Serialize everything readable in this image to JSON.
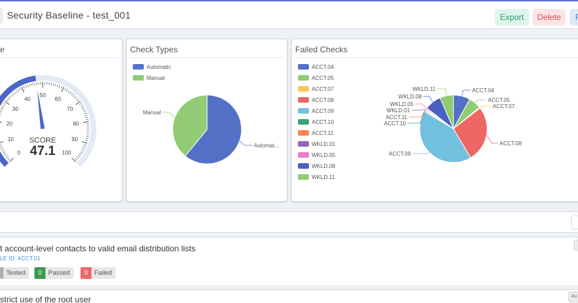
{
  "header": {
    "title": "Security Baseline - test_001",
    "export_label": "Export",
    "delete_label": "Delete",
    "more_label": "F"
  },
  "score_card": {
    "title": "e",
    "score_label": "SCORE",
    "score_value": "47.1",
    "score": 47.1,
    "gauge_min": 0,
    "gauge_max": 100,
    "ticks": [
      "0",
      "10",
      "20",
      "30",
      "40",
      "50",
      "60",
      "70",
      "80",
      "90",
      "100"
    ],
    "accent_color": "#4a66c9"
  },
  "check_types": {
    "title": "Check Types"
  },
  "failed_checks": {
    "title": "Failed Checks"
  },
  "chart_data": [
    {
      "type": "pie",
      "title": "Check Types",
      "categories": [
        "Automatic",
        "Manual"
      ],
      "values": [
        61,
        39
      ],
      "colors": [
        "#5470c6",
        "#91cc75"
      ],
      "legend": "top-left",
      "slice_labels": [
        "Automat...",
        "Manual"
      ]
    },
    {
      "type": "pie",
      "title": "Failed Checks",
      "categories": [
        "ACCT.04",
        "ACCT.05",
        "ACCT.07",
        "ACCT.08",
        "ACCT.09",
        "ACCT.10",
        "ACCT.11",
        "WKLD.01",
        "WKLD.05",
        "WKLD.08",
        "WKLD.11"
      ],
      "values": [
        8,
        6,
        0.5,
        27,
        42,
        0.5,
        0.5,
        0.5,
        0.5,
        8,
        6.5
      ],
      "colors": [
        "#5470c6",
        "#91cc75",
        "#fac858",
        "#ee6666",
        "#73c0de",
        "#3ba272",
        "#fc8452",
        "#9a60b4",
        "#ea7ccc",
        "#4a5fc1",
        "#8fcc6f"
      ],
      "legend": "left"
    }
  ],
  "strip": {},
  "rules": [
    {
      "title": "t account-level contacts to valid email distribution lists",
      "rule_id": "LE ID: ACCT.01",
      "tested_count": "",
      "tested_label": "Tested",
      "passed_count": "0",
      "passed_label": "Passed",
      "failed_count": "0",
      "failed_label": "Failed",
      "tested_color": "#b0b0b0",
      "passed_color": "#3d9a50",
      "failed_color": "#e86a6a"
    },
    {
      "title": "strict use of the root user",
      "corner_label": "Au"
    }
  ]
}
